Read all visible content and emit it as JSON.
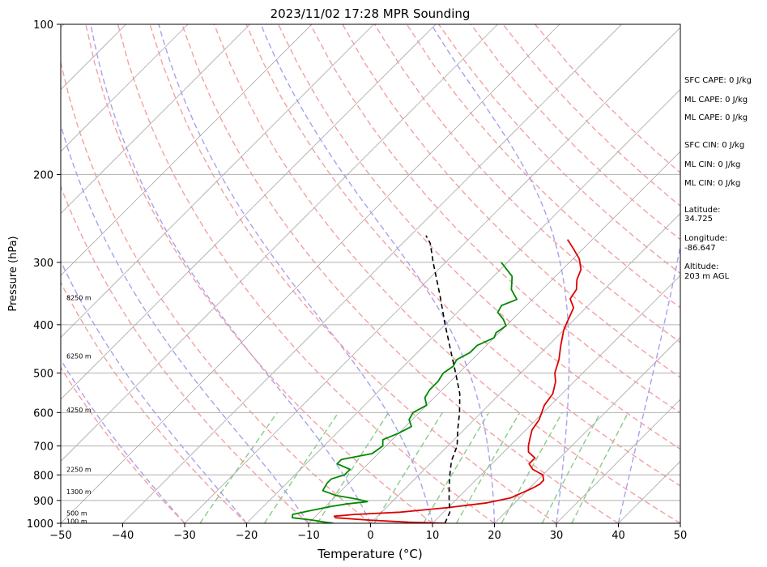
{
  "chart_data": {
    "type": "line",
    "title": "2023/11/02 17:28 MPR Sounding",
    "xlabel": "Temperature (°C)",
    "ylabel": "Pressure (hPa)",
    "xlim": [
      -50,
      50
    ],
    "ylim": [
      1000,
      100
    ],
    "y_scale": "log",
    "skew": true,
    "grid": true,
    "x_ticks": [
      "−50",
      "−40",
      "−30",
      "−20",
      "−10",
      "0",
      "10",
      "20",
      "30",
      "40",
      "50"
    ],
    "y_ticks": [
      "100",
      "200",
      "300",
      "400",
      "500",
      "600",
      "700",
      "800",
      "900",
      "1000"
    ],
    "height_labels": [
      {
        "p": 353,
        "text": "8250 m"
      },
      {
        "p": 462,
        "text": "6250 m"
      },
      {
        "p": 593,
        "text": "4250 m"
      },
      {
        "p": 780,
        "text": "2250 m"
      },
      {
        "p": 864,
        "text": "1300 m"
      },
      {
        "p": 955,
        "text": "500 m"
      },
      {
        "p": 990,
        "text": "100 m"
      }
    ],
    "series": [
      {
        "color": "#dd0000",
        "style": "solid",
        "points": [
          [
            1000,
            12
          ],
          [
            995,
            6
          ],
          [
            985,
            -1
          ],
          [
            975,
            -6.5
          ],
          [
            968,
            -7
          ],
          [
            960,
            -4
          ],
          [
            950,
            3
          ],
          [
            930,
            10
          ],
          [
            910,
            15.5
          ],
          [
            890,
            18.5
          ],
          [
            870,
            19.5
          ],
          [
            850,
            20.5
          ],
          [
            835,
            21
          ],
          [
            820,
            21
          ],
          [
            800,
            20
          ],
          [
            780,
            17.5
          ],
          [
            760,
            16
          ],
          [
            740,
            16
          ],
          [
            720,
            14
          ],
          [
            700,
            13
          ],
          [
            675,
            12
          ],
          [
            650,
            11
          ],
          [
            620,
            10.5
          ],
          [
            580,
            9
          ],
          [
            550,
            8.5
          ],
          [
            520,
            7
          ],
          [
            500,
            5.5
          ],
          [
            470,
            4
          ],
          [
            440,
            2
          ],
          [
            410,
            0
          ],
          [
            390,
            -1
          ],
          [
            370,
            -2
          ],
          [
            355,
            -4
          ],
          [
            340,
            -4.5
          ],
          [
            325,
            -6
          ],
          [
            310,
            -7
          ],
          [
            295,
            -9
          ],
          [
            282,
            -11.5
          ],
          [
            270,
            -14
          ]
        ]
      },
      {
        "color": "#008800",
        "style": "solid",
        "points": [
          [
            1000,
            -6
          ],
          [
            995,
            -7.5
          ],
          [
            985,
            -10
          ],
          [
            975,
            -13.5
          ],
          [
            960,
            -14
          ],
          [
            945,
            -12
          ],
          [
            935,
            -10.5
          ],
          [
            925,
            -9
          ],
          [
            915,
            -7
          ],
          [
            905,
            -4
          ],
          [
            895,
            -6
          ],
          [
            880,
            -10
          ],
          [
            860,
            -13
          ],
          [
            830,
            -13.5
          ],
          [
            815,
            -13.5
          ],
          [
            800,
            -12
          ],
          [
            780,
            -12
          ],
          [
            760,
            -15
          ],
          [
            745,
            -15
          ],
          [
            725,
            -11
          ],
          [
            700,
            -10.5
          ],
          [
            680,
            -11.5
          ],
          [
            660,
            -10
          ],
          [
            640,
            -9
          ],
          [
            620,
            -10.5
          ],
          [
            600,
            -11
          ],
          [
            580,
            -10
          ],
          [
            560,
            -11.5
          ],
          [
            540,
            -12
          ],
          [
            520,
            -12
          ],
          [
            500,
            -12.5
          ],
          [
            485,
            -12
          ],
          [
            470,
            -12.5
          ],
          [
            455,
            -11.5
          ],
          [
            440,
            -11.5
          ],
          [
            425,
            -10
          ],
          [
            415,
            -10.5
          ],
          [
            402,
            -10
          ],
          [
            390,
            -11.5
          ],
          [
            378,
            -13.5
          ],
          [
            366,
            -14
          ],
          [
            356,
            -12.5
          ],
          [
            340,
            -15
          ],
          [
            320,
            -17
          ],
          [
            300,
            -21
          ]
        ]
      },
      {
        "color": "#000000",
        "style": "dashed",
        "points": [
          [
            1000,
            12
          ],
          [
            950,
            11
          ],
          [
            900,
            9
          ],
          [
            850,
            7
          ],
          [
            800,
            5
          ],
          [
            750,
            3
          ],
          [
            700,
            1.5
          ],
          [
            650,
            -1
          ],
          [
            600,
            -3.5
          ],
          [
            550,
            -6.5
          ],
          [
            500,
            -10.5
          ],
          [
            450,
            -15
          ],
          [
            400,
            -20
          ],
          [
            350,
            -25.5
          ],
          [
            300,
            -32
          ],
          [
            275,
            -35.5
          ],
          [
            265,
            -37.5
          ]
        ]
      }
    ]
  },
  "annotations": [
    "SFC CAPE: 0 J/kg",
    "ML CAPE: 0 J/kg",
    "ML CAPE: 0 J/kg",
    "SFC CIN: 0 J/kg",
    "ML CIN: 0 J/kg",
    "ML CIN: 0 J/kg",
    "Latitude:",
    "34.725",
    "Longitude:",
    "-86.647",
    "Altitude:",
    "203 m AGL"
  ],
  "reference_lines": {
    "isotherm_color": "#aaaaaa",
    "dry_adiabat_color": "#f5a0a0",
    "moist_adiabat_color": "#a8a0f0",
    "mixing_ratio_color": "#88cc88"
  }
}
